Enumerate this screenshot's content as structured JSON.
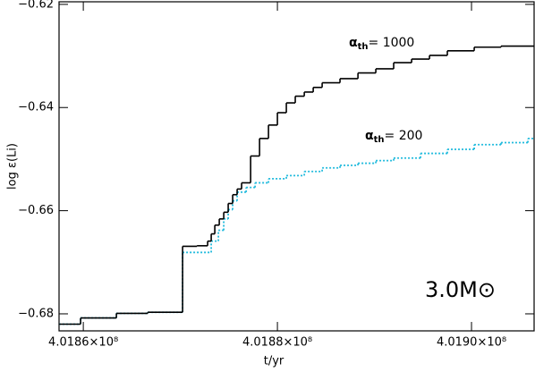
{
  "chart_data": {
    "type": "step",
    "xlabel": "t/yr",
    "ylabel": "log ε(Li)",
    "xlim": [
      401857500,
      401906450
    ],
    "ylim": [
      -0.6833,
      -0.6195
    ],
    "xticks": [
      {
        "value": 401860000,
        "label": "4.0186×10⁸"
      },
      {
        "value": 401880000,
        "label": "4.0188×10⁸"
      },
      {
        "value": 401900000,
        "label": "4.0190×10⁸"
      }
    ],
    "yticks": [
      {
        "value": -0.68,
        "label": "−0.68"
      },
      {
        "value": -0.66,
        "label": "−0.66"
      },
      {
        "value": -0.64,
        "label": "−0.64"
      },
      {
        "value": -0.62,
        "label": "−0.62"
      }
    ],
    "series": [
      {
        "color": "#000000",
        "line_style": "solid",
        "x": [
          401857500,
          401859720,
          401863410,
          401866640,
          401870230,
          401871710,
          401872810,
          401873180,
          401873550,
          401874010,
          401874470,
          401874930,
          401875390,
          401875850,
          401876310,
          401877240,
          401878160,
          401879080,
          401880000,
          401880920,
          401881840,
          401882770,
          401883690,
          401884610,
          401886450,
          401888300,
          401890140,
          401891980,
          401893830,
          401895670,
          401897510,
          401900280,
          401903040
        ],
        "values": [
          -0.682,
          -0.6808,
          -0.6799,
          -0.6797,
          -0.6669,
          -0.6668,
          -0.6659,
          -0.6645,
          -0.6628,
          -0.6616,
          -0.6603,
          -0.6586,
          -0.6569,
          -0.6558,
          -0.6546,
          -0.6494,
          -0.646,
          -0.6434,
          -0.641,
          -0.6391,
          -0.6378,
          -0.637,
          -0.6361,
          -0.6352,
          -0.6344,
          -0.6333,
          -0.6325,
          -0.6313,
          -0.6306,
          -0.6299,
          -0.629,
          -0.6283,
          -0.6281
        ]
      },
      {
        "color": "#22bbdd",
        "line_style": "dotted",
        "x": [
          401857500,
          401859720,
          401863410,
          401866640,
          401870230,
          401873180,
          401873920,
          401874470,
          401874930,
          401875390,
          401875850,
          401876780,
          401877700,
          401879080,
          401880920,
          401882770,
          401884610,
          401886450,
          401888300,
          401890140,
          401891980,
          401894750,
          401897510,
          401900280,
          401903040,
          401905810
        ],
        "values": [
          -0.682,
          -0.6808,
          -0.6799,
          -0.6797,
          -0.6681,
          -0.6659,
          -0.6638,
          -0.6616,
          -0.6598,
          -0.6581,
          -0.6564,
          -0.6555,
          -0.6546,
          -0.6538,
          -0.6532,
          -0.6524,
          -0.6517,
          -0.6512,
          -0.6508,
          -0.6503,
          -0.6498,
          -0.6489,
          -0.6481,
          -0.6472,
          -0.6468,
          -0.646
        ]
      }
    ],
    "annotations": [
      {
        "symbol": "α",
        "subscript": "th",
        "text": "= 1000"
      },
      {
        "symbol": "α",
        "subscript": "th",
        "text": "= 200"
      },
      {
        "text": "3.0M⊙"
      }
    ]
  }
}
